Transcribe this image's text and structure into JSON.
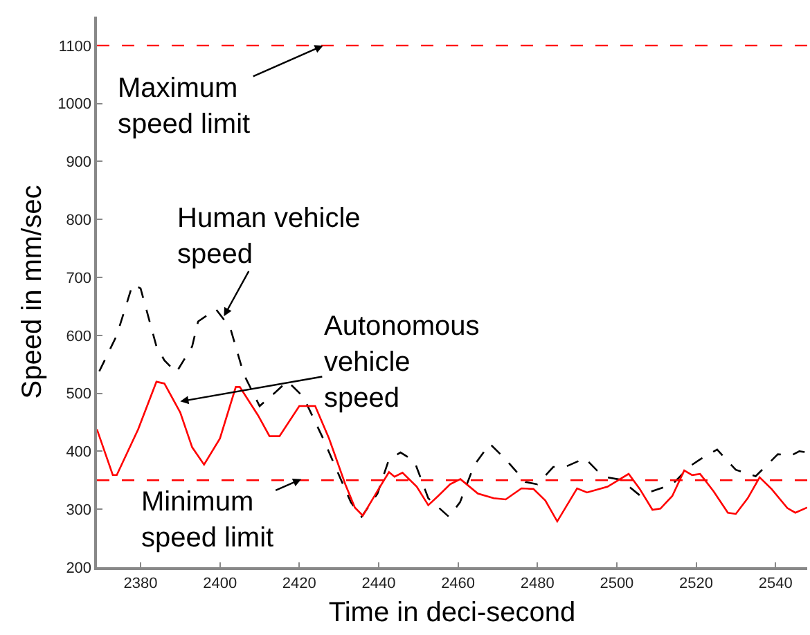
{
  "chart_data": {
    "type": "line",
    "xlabel": "Time in deci-second",
    "ylabel": "Speed in mm/sec",
    "xlim": [
      2369,
      2548
    ],
    "ylim": [
      200,
      1150
    ],
    "xticks": [
      2380,
      2400,
      2420,
      2440,
      2460,
      2480,
      2500,
      2520,
      2540
    ],
    "yticks": [
      200,
      300,
      400,
      500,
      600,
      700,
      800,
      900,
      1000,
      1100
    ],
    "grid": false,
    "series": [
      {
        "color": "#000000",
        "line_style": "dashed",
        "x": [
          2369.6,
          2374,
          2378,
          2380,
          2384,
          2386,
          2389,
          2393,
          2394.5,
          2399,
          2402.6,
          2406,
          2410,
          2414,
          2417,
          2421,
          2426,
          2430.5,
          2433,
          2435.7,
          2439.7,
          2442.6,
          2445.5,
          2449,
          2452.5,
          2457.7,
          2460.5,
          2464,
          2468,
          2472,
          2477,
          2480,
          2484,
          2487,
          2492,
          2495,
          2497.7,
          2501,
          2505.8,
          2514,
          2518.6,
          2521,
          2525.3,
          2530,
          2535,
          2540.6,
          2544,
          2546,
          2548
        ],
        "values": [
          538,
          600,
          688,
          681,
          581,
          557,
          536,
          581,
          624,
          645,
          613,
          533,
          478,
          502,
          521,
          494,
          422,
          351,
          312,
          287,
          327,
          386,
          398,
          383,
          319,
          287,
          312,
          375,
          413,
          386,
          347,
          343,
          373,
          373,
          388,
          367,
          355,
          351,
          324,
          343,
          375,
          386,
          403,
          368,
          357,
          395,
          393,
          400,
          398
        ]
      },
      {
        "color": "#ff0000",
        "line_style": "solid",
        "x": [
          2369,
          2373,
          2374,
          2379.4,
          2384,
          2386,
          2390,
          2393,
          2396,
          2400,
          2404,
          2405,
          2409.6,
          2412.5,
          2415,
          2420,
          2424,
          2427.5,
          2431.6,
          2434,
          2436,
          2440,
          2442.6,
          2444,
          2446,
          2449.6,
          2452.5,
          2455,
          2458,
          2460.6,
          2465,
          2469,
          2472,
          2476,
          2479,
          2482,
          2485,
          2490,
          2492.5,
          2497.7,
          2503,
          2505.8,
          2509,
          2511,
          2514,
          2517,
          2519,
          2521,
          2524.4,
          2528,
          2530,
          2533,
          2536,
          2539,
          2543,
          2545,
          2548
        ],
        "values": [
          438,
          359,
          359,
          438,
          520,
          517,
          467,
          407,
          377,
          422,
          511,
          511,
          462,
          426,
          426,
          478,
          478,
          422,
          343,
          303,
          289,
          335,
          364,
          356,
          363,
          339,
          307,
          323,
          343,
          352,
          327,
          319,
          317,
          336,
          335,
          315,
          279,
          336,
          329,
          339,
          361,
          335,
          299,
          301,
          323,
          367,
          359,
          361,
          331,
          294,
          292,
          319,
          355,
          335,
          302,
          294,
          303
        ]
      }
    ],
    "ref_lines": [
      {
        "axis": "y",
        "value": 1100,
        "color": "#ff0000",
        "line_style": "dashed"
      },
      {
        "axis": "y",
        "value": 350,
        "color": "#ff0000",
        "line_style": "dashed"
      }
    ],
    "annotations": [
      {
        "text": "Maximum speed limit",
        "x": 2426,
        "y": 1100
      },
      {
        "text": "Human vehicle speed",
        "x": 2401,
        "y": 633
      },
      {
        "text": "Autonomous vehicle speed",
        "x": 2390,
        "y": 486
      },
      {
        "text": "Minimum speed limit",
        "x": 2420.5,
        "y": 352
      }
    ]
  }
}
